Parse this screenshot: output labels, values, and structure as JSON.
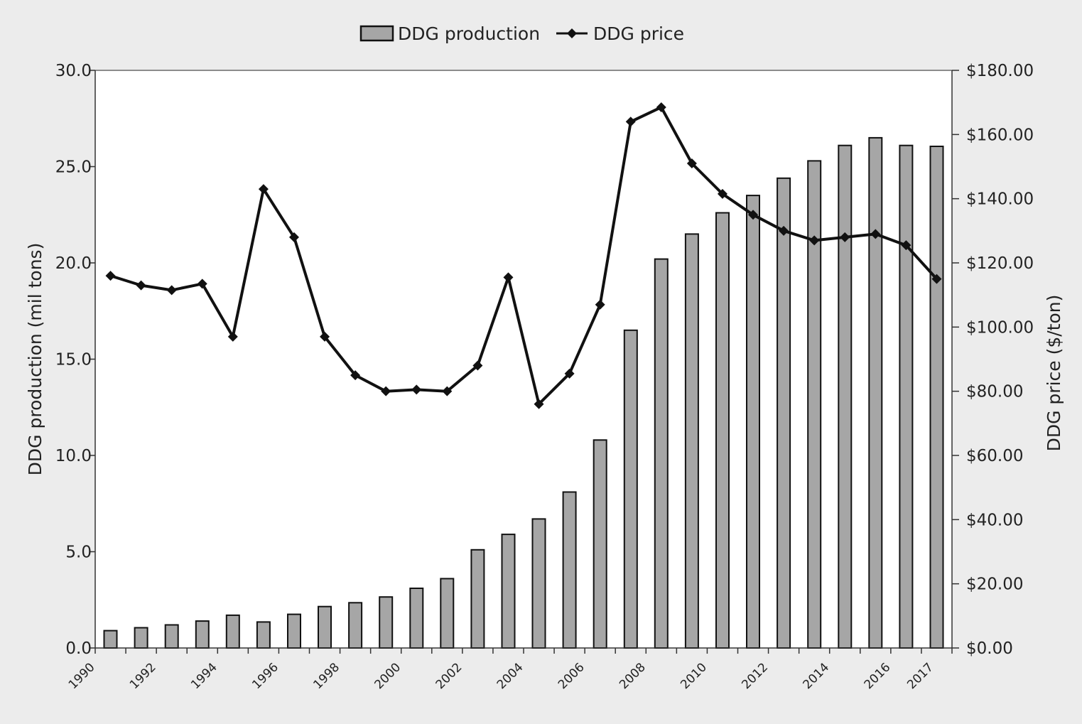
{
  "chart_data": {
    "type": "bar",
    "legend": {
      "placement": "top-center",
      "entries": [
        "DDG production",
        "DDG price"
      ]
    },
    "x": [
      "1990",
      "1991",
      "1992",
      "1993",
      "1994",
      "1995",
      "1996",
      "1997",
      "1998",
      "1999",
      "2000",
      "2001",
      "2002",
      "2003",
      "2004",
      "2005",
      "2006",
      "2007",
      "2008",
      "2009",
      "2010",
      "2011",
      "2012",
      "2013",
      "2014",
      "2015",
      "2016",
      "2017"
    ],
    "x_tick_labels": [
      "1990",
      "1992",
      "1994",
      "1996",
      "1998",
      "2000",
      "2002",
      "2004",
      "2006",
      "2008",
      "2010",
      "2012",
      "2014",
      "2016",
      "2017"
    ],
    "ylabel": "DDG production (mil tons)",
    "ylim": [
      0,
      30
    ],
    "y_ticks": [
      "0.0",
      "5.0",
      "10.0",
      "15.0",
      "20.0",
      "25.0",
      "30.0"
    ],
    "y2label": "DDG price ($/ton)",
    "y2lim": [
      0,
      180
    ],
    "y2_ticks": [
      "$0.00",
      "$20.00",
      "$40.00",
      "$60.00",
      "$80.00",
      "$100.00",
      "$120.00",
      "$140.00",
      "$160.00",
      "$180.00"
    ],
    "grid": false,
    "colors": {
      "bar": "#a6a6a6",
      "bar_stroke": "#111111",
      "line": "#111111",
      "plot_bg": "#ffffff",
      "page_bg": "#ececec"
    },
    "series": [
      {
        "name": "DDG production",
        "type": "bar",
        "axis": "left",
        "values": [
          0.9,
          1.05,
          1.2,
          1.4,
          1.7,
          1.35,
          1.75,
          2.15,
          2.35,
          2.65,
          3.1,
          3.6,
          5.1,
          5.9,
          6.7,
          8.1,
          10.8,
          16.5,
          20.2,
          21.5,
          22.6,
          23.5,
          24.4,
          25.3,
          26.1,
          26.5,
          26.1,
          26.05
        ]
      },
      {
        "name": "DDG price",
        "type": "line",
        "axis": "right",
        "values": [
          116,
          113,
          111.5,
          113.5,
          97,
          143,
          128,
          97,
          85,
          80,
          80.5,
          80,
          88,
          115.5,
          76,
          85.5,
          107,
          164,
          168.5,
          151,
          141.5,
          135,
          130,
          127,
          128,
          129,
          125.5,
          115
        ]
      }
    ]
  }
}
